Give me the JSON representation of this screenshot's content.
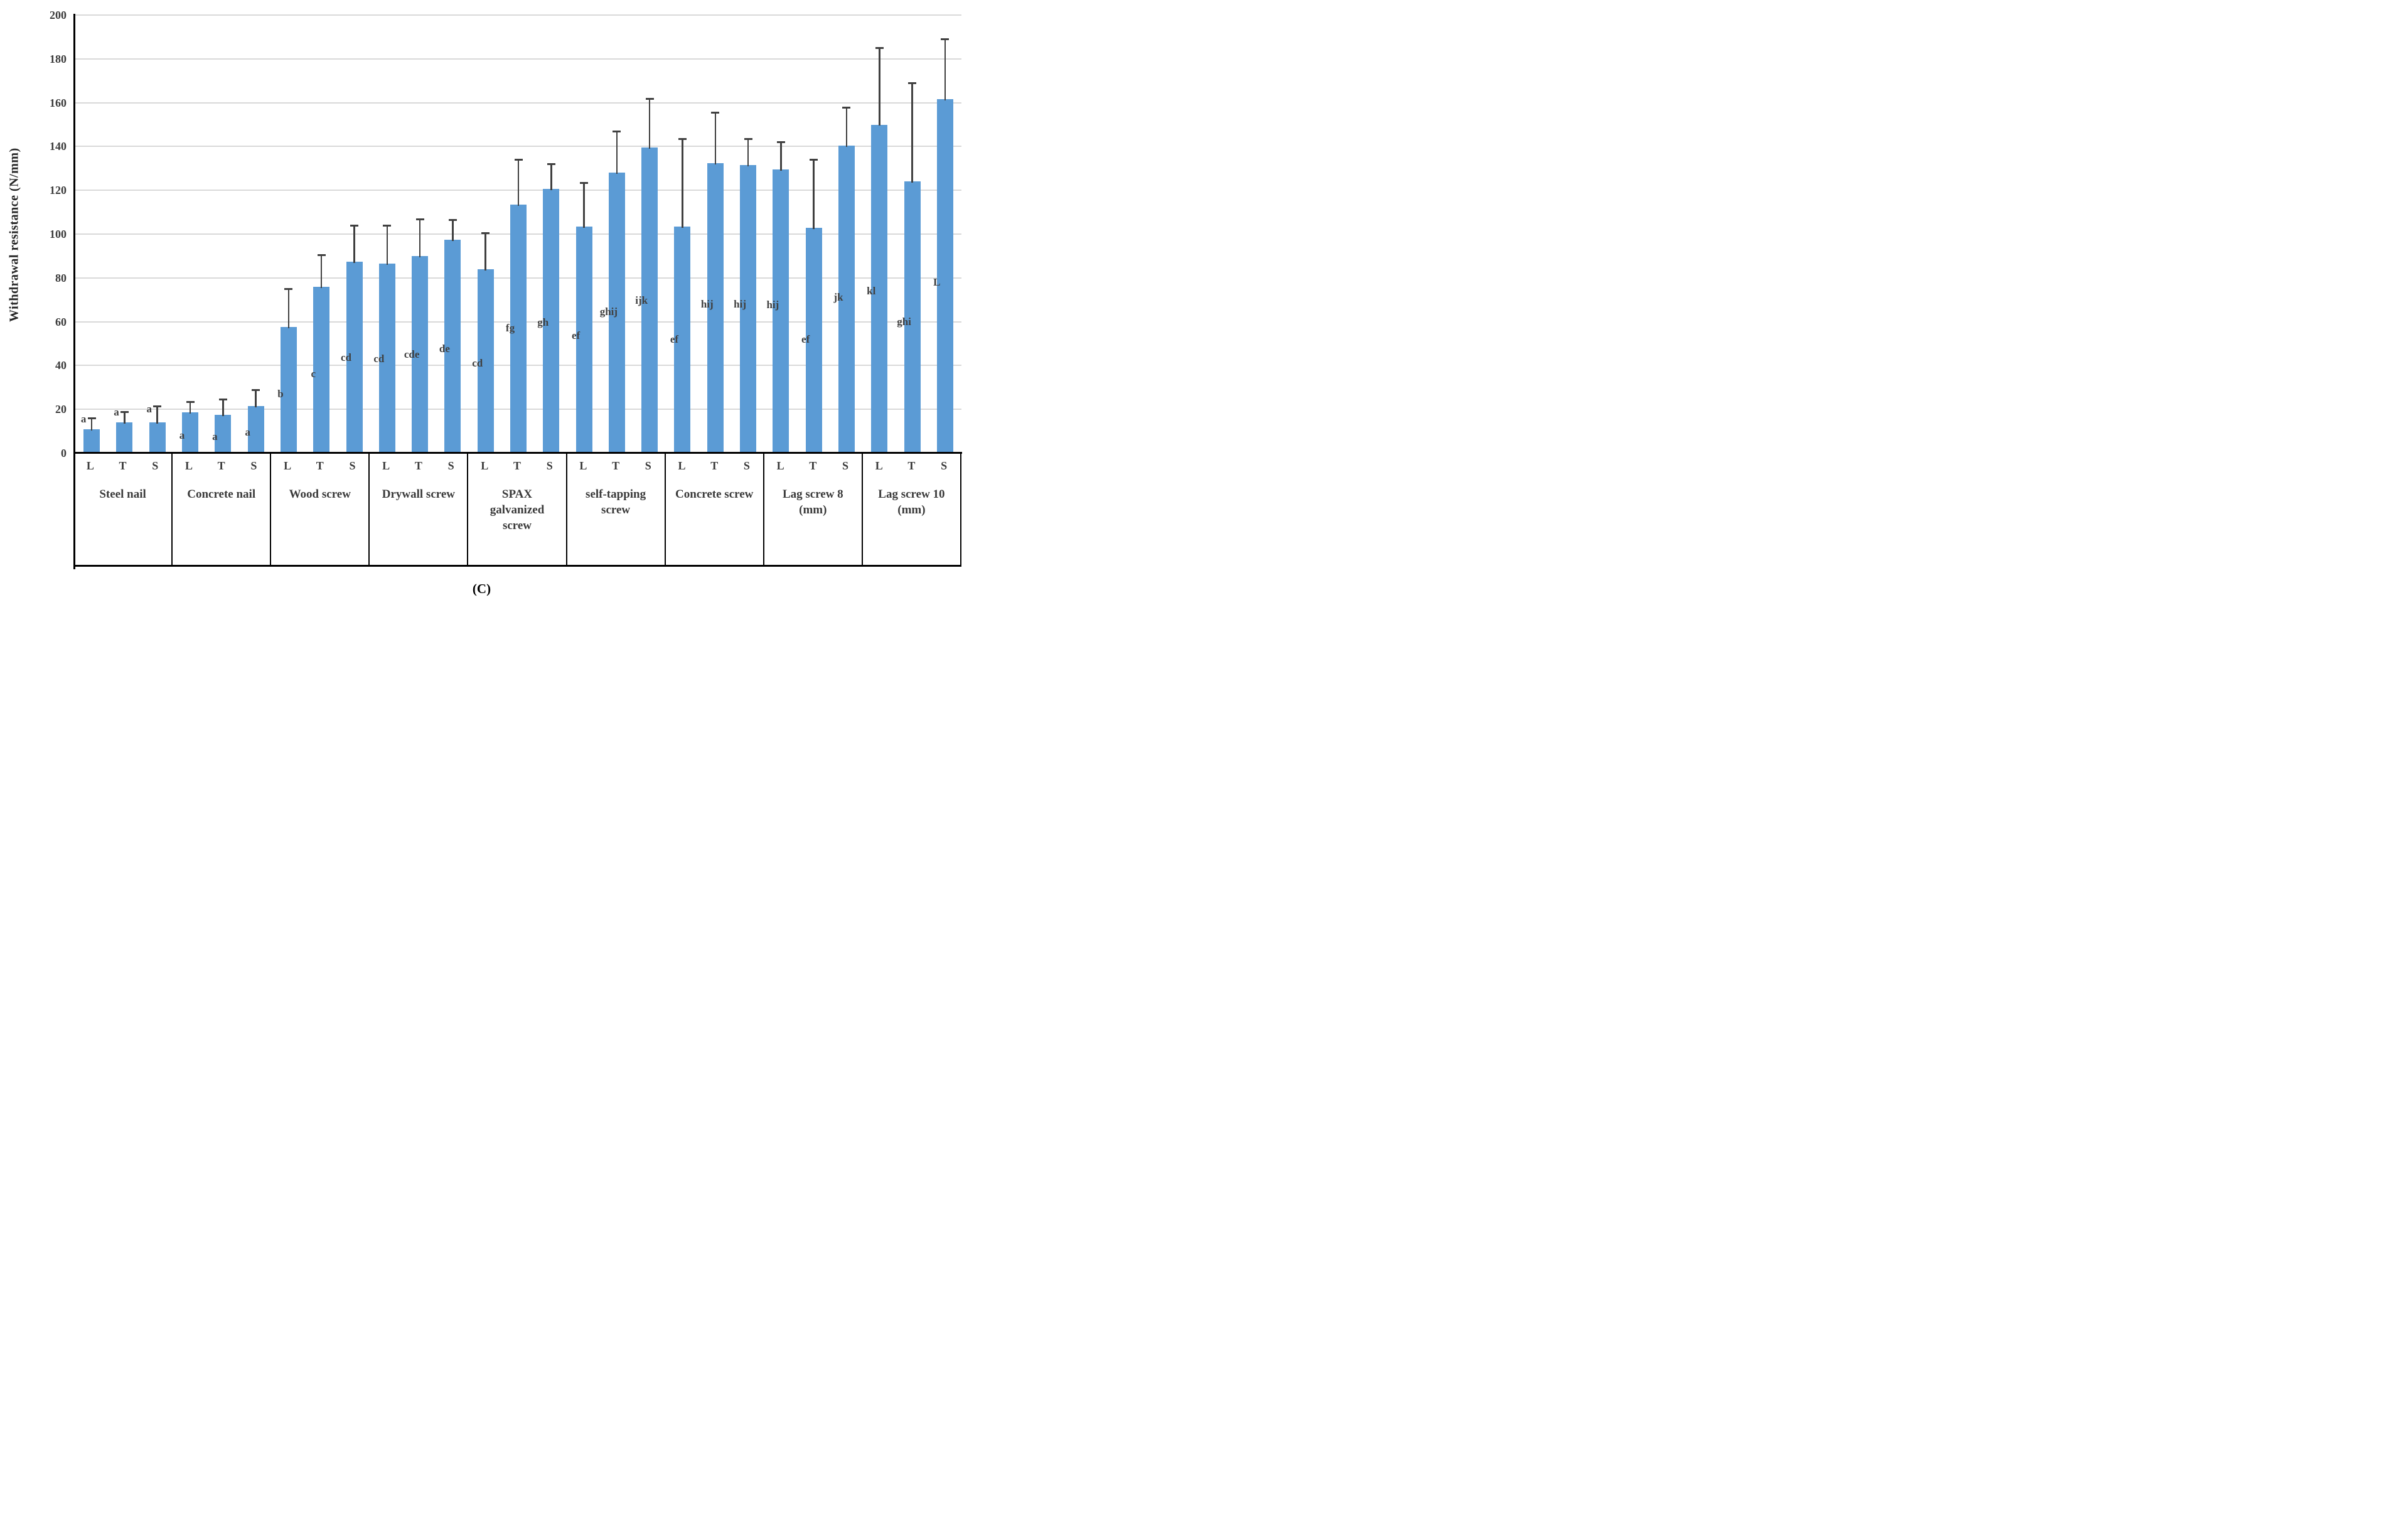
{
  "figure": {
    "caption": "(C)",
    "colors": {
      "bar": "#5B9BD5",
      "error_bar": "#404040",
      "gridline": "#D9D9D9",
      "axis": "#000000",
      "text": "#3a3a3a"
    }
  },
  "chart_data": {
    "type": "bar",
    "title": "",
    "xlabel": "",
    "ylabel": "Withdrawal resistance (N/mm)",
    "ylim": [
      0,
      200
    ],
    "ytick_step": 20,
    "yticks": [
      0,
      20,
      40,
      60,
      80,
      100,
      120,
      140,
      160,
      180,
      200
    ],
    "grid": "horizontal",
    "legend": "none",
    "error_bars": "plus direction only, dark gray caps",
    "orientations": [
      "L",
      "T",
      "S"
    ],
    "categories": [
      "Steel nail",
      "Concrete nail",
      "Wood screw",
      "Drywall screw",
      "SPAX galvanized screw",
      "self-tapping screw",
      "Concrete screw",
      "Lag screw 8 (mm)",
      "Lag screw 10 (mm)"
    ],
    "series": [
      {
        "name": "L",
        "values": [
          11,
          18.5,
          57.5,
          86.5,
          84,
          103.5,
          103.5,
          129.5,
          150
        ]
      },
      {
        "name": "T",
        "values": [
          14,
          17.5,
          76,
          90,
          113.5,
          128,
          132.5,
          103,
          124
        ]
      },
      {
        "name": "S",
        "values": [
          14,
          21.5,
          87.5,
          97.5,
          120.5,
          139.5,
          131.5,
          140.5,
          161.5
        ]
      }
    ],
    "groups": [
      {
        "name": "Steel nail",
        "bars": [
          {
            "orientation": "L",
            "value": 11,
            "error_plus": 5,
            "sig": "a",
            "sig_y": 15.5
          },
          {
            "orientation": "T",
            "value": 14,
            "error_plus": 5,
            "sig": "a",
            "sig_y": 18.5
          },
          {
            "orientation": "S",
            "value": 14,
            "error_plus": 7.5,
            "sig": "a",
            "sig_y": 20
          }
        ]
      },
      {
        "name": "Concrete nail",
        "bars": [
          {
            "orientation": "L",
            "value": 18.5,
            "error_plus": 5,
            "sig": "a",
            "sig_y": 8
          },
          {
            "orientation": "T",
            "value": 17.5,
            "error_plus": 7,
            "sig": "a",
            "sig_y": 7.5
          },
          {
            "orientation": "S",
            "value": 21.5,
            "error_plus": 7.5,
            "sig": "a",
            "sig_y": 9.5
          }
        ]
      },
      {
        "name": "Wood screw",
        "bars": [
          {
            "orientation": "L",
            "value": 57.5,
            "error_plus": 17.5,
            "sig": "b",
            "sig_y": 27
          },
          {
            "orientation": "T",
            "value": 76,
            "error_plus": 14.5,
            "sig": "c",
            "sig_y": 36
          },
          {
            "orientation": "S",
            "value": 87.5,
            "error_plus": 16.5,
            "sig": "cd",
            "sig_y": 43.5
          }
        ]
      },
      {
        "name": "Drywall screw",
        "bars": [
          {
            "orientation": "L",
            "value": 86.5,
            "error_plus": 17.5,
            "sig": "cd",
            "sig_y": 43
          },
          {
            "orientation": "T",
            "value": 90,
            "error_plus": 17,
            "sig": "cde",
            "sig_y": 45
          },
          {
            "orientation": "S",
            "value": 97.5,
            "error_plus": 9,
            "sig": "de",
            "sig_y": 47.5
          }
        ]
      },
      {
        "name": "SPAX galvanized screw",
        "bars": [
          {
            "orientation": "L",
            "value": 84,
            "error_plus": 16.5,
            "sig": "cd",
            "sig_y": 41
          },
          {
            "orientation": "T",
            "value": 113.5,
            "error_plus": 20.5,
            "sig": "fg",
            "sig_y": 57
          },
          {
            "orientation": "S",
            "value": 120.5,
            "error_plus": 11.5,
            "sig": "gh",
            "sig_y": 59.5
          }
        ]
      },
      {
        "name": "self-tapping screw",
        "bars": [
          {
            "orientation": "L",
            "value": 103.5,
            "error_plus": 20,
            "sig": "ef",
            "sig_y": 53.5
          },
          {
            "orientation": "T",
            "value": 128,
            "error_plus": 19,
            "sig": "ghij",
            "sig_y": 64.5
          },
          {
            "orientation": "S",
            "value": 139.5,
            "error_plus": 22.5,
            "sig": "ijk",
            "sig_y": 69.5
          }
        ]
      },
      {
        "name": "Concrete screw",
        "bars": [
          {
            "orientation": "L",
            "value": 103.5,
            "error_plus": 40,
            "sig": "ef",
            "sig_y": 52
          },
          {
            "orientation": "T",
            "value": 132.5,
            "error_plus": 23,
            "sig": "hij",
            "sig_y": 68
          },
          {
            "orientation": "S",
            "value": 131.5,
            "error_plus": 12,
            "sig": "hij",
            "sig_y": 68
          }
        ]
      },
      {
        "name": "Lag screw 8 (mm)",
        "bars": [
          {
            "orientation": "L",
            "value": 129.5,
            "error_plus": 12.5,
            "sig": "hij",
            "sig_y": 67.5
          },
          {
            "orientation": "T",
            "value": 103,
            "error_plus": 31,
            "sig": "ef",
            "sig_y": 52
          },
          {
            "orientation": "S",
            "value": 140.5,
            "error_plus": 17.5,
            "sig": "jk",
            "sig_y": 71
          }
        ]
      },
      {
        "name": "Lag screw 10 (mm)",
        "bars": [
          {
            "orientation": "L",
            "value": 150,
            "error_plus": 35,
            "sig": "kl",
            "sig_y": 74
          },
          {
            "orientation": "T",
            "value": 124,
            "error_plus": 45,
            "sig": "ghi",
            "sig_y": 60
          },
          {
            "orientation": "S",
            "value": 161.5,
            "error_plus": 27.5,
            "sig": "L",
            "sig_y": 78
          }
        ]
      }
    ]
  }
}
